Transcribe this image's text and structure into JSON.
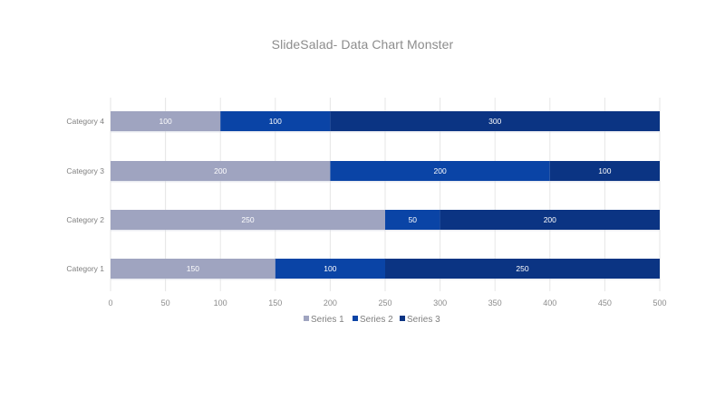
{
  "chart_data": {
    "type": "bar",
    "orientation": "horizontal",
    "stacked": true,
    "title": "SlideSalad- Data Chart Monster",
    "categories": [
      "Category 1",
      "Category 2",
      "Category 3",
      "Category 4"
    ],
    "series": [
      {
        "name": "Series 1",
        "values": [
          150,
          250,
          200,
          100
        ],
        "color": "#9fa4c0"
      },
      {
        "name": "Series 2",
        "values": [
          100,
          50,
          200,
          100
        ],
        "color": "#0a44a6"
      },
      {
        "name": "Series 3",
        "values": [
          250,
          200,
          100,
          300
        ],
        "color": "#0b3483"
      }
    ],
    "xlim": [
      0,
      500
    ],
    "xticks": [
      0,
      50,
      100,
      150,
      200,
      250,
      300,
      350,
      400,
      450,
      500
    ],
    "grid": true,
    "legend": "bottom"
  }
}
